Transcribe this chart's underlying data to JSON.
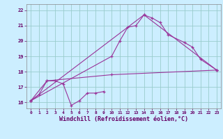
{
  "background_color": "#cceeff",
  "grid_color": "#99cccc",
  "line_color": "#993399",
  "xlim": [
    -0.5,
    23.5
  ],
  "ylim": [
    15.6,
    22.4
  ],
  "xlabel": "Windchill (Refroidissement éolien,°C)",
  "xlabel_fontsize": 6.0,
  "yticks": [
    16,
    17,
    18,
    19,
    20,
    21,
    22
  ],
  "xticks": [
    0,
    1,
    2,
    3,
    4,
    5,
    6,
    7,
    8,
    9,
    10,
    11,
    12,
    13,
    14,
    15,
    16,
    17,
    18,
    19,
    20,
    21,
    22,
    23
  ],
  "line1_x": [
    0,
    1,
    2,
    3,
    4,
    5,
    6,
    7,
    8,
    9
  ],
  "line1_y": [
    16.1,
    16.5,
    17.4,
    17.4,
    17.2,
    15.8,
    16.1,
    16.6,
    16.6,
    16.7
  ],
  "line2_x": [
    0,
    10,
    11,
    12,
    13,
    14,
    15,
    16,
    17,
    19,
    20,
    21,
    23
  ],
  "line2_y": [
    16.1,
    19.0,
    20.0,
    20.9,
    21.0,
    21.7,
    21.5,
    21.2,
    20.4,
    19.9,
    19.6,
    18.8,
    18.1
  ],
  "line3_x": [
    0,
    14,
    23
  ],
  "line3_y": [
    16.1,
    21.7,
    18.1
  ],
  "line4_x": [
    0,
    2,
    10,
    23
  ],
  "line4_y": [
    16.1,
    17.4,
    17.8,
    18.1
  ]
}
